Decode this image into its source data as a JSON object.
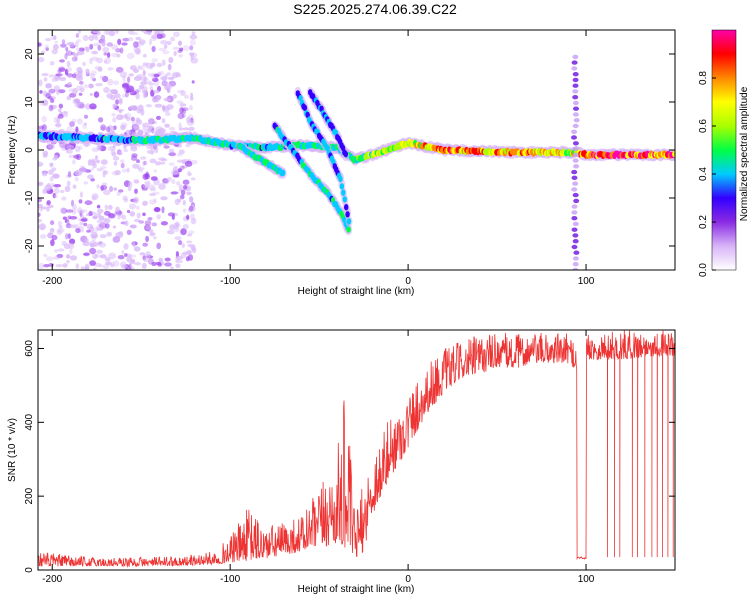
{
  "title": "S225.2025.274.06.39.C22",
  "chart_data": [
    {
      "type": "heatmap",
      "name": "spectrogram",
      "xlabel": "Height of straight line (km)",
      "ylabel": "Frequency (Hz)",
      "xlim": [
        -208,
        150
      ],
      "ylim": [
        -25,
        25
      ],
      "xticks": [
        -200,
        -100,
        0,
        100
      ],
      "yticks": [
        -20,
        -10,
        0,
        10,
        20
      ],
      "colorbar": {
        "label": "Normalized spectral amplitude",
        "range": [
          0,
          1
        ],
        "ticks": [
          0.0,
          0.2,
          0.4,
          0.6,
          0.8
        ],
        "tick_labels": [
          "0.0",
          "0.2",
          "0.4",
          "0.6",
          "0.8"
        ],
        "colormap": [
          "#ffffff",
          "#d8b4f8",
          "#8a2be2",
          "#3300ff",
          "#00ccff",
          "#00ff44",
          "#aaff00",
          "#ffff00",
          "#ff8800",
          "#ff0000",
          "#ff00aa"
        ]
      },
      "features": [
        {
          "name": "noise-scatter",
          "x_range": [
            -208,
            -120
          ],
          "freq_range": [
            -25,
            25
          ],
          "amplitude": 0.12
        },
        {
          "name": "carrier-line",
          "x": [
            -208,
            -150,
            -120,
            -100,
            -80,
            -60,
            -40,
            -30,
            -20,
            0,
            20,
            60,
            95,
            100,
            150
          ],
          "freq": [
            3,
            2,
            2.5,
            1,
            0.5,
            1,
            0.5,
            -2,
            -1,
            1.5,
            0,
            -0.5,
            -0.5,
            -1,
            -1
          ],
          "amplitude": [
            0.25,
            0.3,
            0.35,
            0.3,
            0.3,
            0.35,
            0.3,
            0.4,
            0.5,
            0.6,
            0.75,
            0.7,
            0.6,
            0.9,
            0.85
          ]
        },
        {
          "name": "descending-trace-1",
          "x": [
            -95,
            -88,
            -78,
            -70
          ],
          "freq": [
            1,
            -1,
            -3,
            -5
          ],
          "amplitude": 0.35
        },
        {
          "name": "descending-trace-2",
          "x": [
            -75,
            -65,
            -55,
            -45,
            -38,
            -33
          ],
          "freq": [
            5,
            0,
            -5,
            -9,
            -13,
            -17
          ],
          "amplitude": 0.3
        },
        {
          "name": "descending-trace-3",
          "x": [
            -62,
            -55,
            -45,
            -38,
            -33
          ],
          "freq": [
            12,
            6,
            0,
            -6,
            -15
          ],
          "amplitude": 0.25
        },
        {
          "name": "descending-trace-4",
          "x": [
            -55,
            -48,
            -40,
            -35
          ],
          "freq": [
            12,
            8,
            3,
            -1
          ],
          "amplitude": 0.2
        },
        {
          "name": "vertical-burst",
          "x": 94,
          "freq_range": [
            -25,
            20
          ],
          "amplitude": 0.3
        }
      ]
    },
    {
      "type": "line",
      "name": "snr",
      "xlabel": "Height of straight line (km)",
      "ylabel": "SNR (10 * v/v)",
      "xlim": [
        -208,
        150
      ],
      "ylim": [
        0,
        650
      ],
      "xticks": [
        -200,
        -100,
        0,
        100
      ],
      "yticks": [
        0,
        200,
        400,
        600
      ],
      "color": "#ee3333",
      "envelope": {
        "x": [
          -208,
          -180,
          -150,
          -125,
          -110,
          -100,
          -90,
          -80,
          -70,
          -60,
          -50,
          -40,
          -35,
          -30,
          -25,
          -20,
          -10,
          0,
          10,
          20,
          30,
          40,
          50,
          60,
          70,
          80,
          90,
          95,
          100,
          110,
          120,
          130,
          140,
          150
        ],
        "low": [
          10,
          10,
          10,
          12,
          15,
          20,
          25,
          30,
          40,
          50,
          60,
          70,
          60,
          30,
          50,
          150,
          250,
          330,
          420,
          480,
          520,
          530,
          550,
          545,
          560,
          560,
          560,
          540,
          570,
          570,
          570,
          575,
          580,
          580
        ],
        "high": [
          50,
          35,
          35,
          38,
          50,
          90,
          170,
          120,
          130,
          150,
          220,
          320,
          500,
          150,
          240,
          320,
          420,
          480,
          560,
          600,
          620,
          640,
          645,
          640,
          640,
          645,
          640,
          620,
          640,
          645,
          650,
          650,
          650,
          650
        ]
      },
      "dropouts": [
        {
          "x_range": [
            95,
            100
          ],
          "snr": 30
        },
        {
          "x": 112,
          "snr": 35
        },
        {
          "x": 116,
          "snr": 35
        },
        {
          "x": 119,
          "snr": 35
        },
        {
          "x": 126,
          "snr": 35
        },
        {
          "x": 129,
          "snr": 35
        },
        {
          "x": 133,
          "snr": 35
        },
        {
          "x": 137,
          "snr": 35
        },
        {
          "x": 140,
          "snr": 35
        },
        {
          "x": 143,
          "snr": 35
        },
        {
          "x": 146,
          "snr": 35
        },
        {
          "x": 149,
          "snr": 35
        }
      ]
    }
  ]
}
